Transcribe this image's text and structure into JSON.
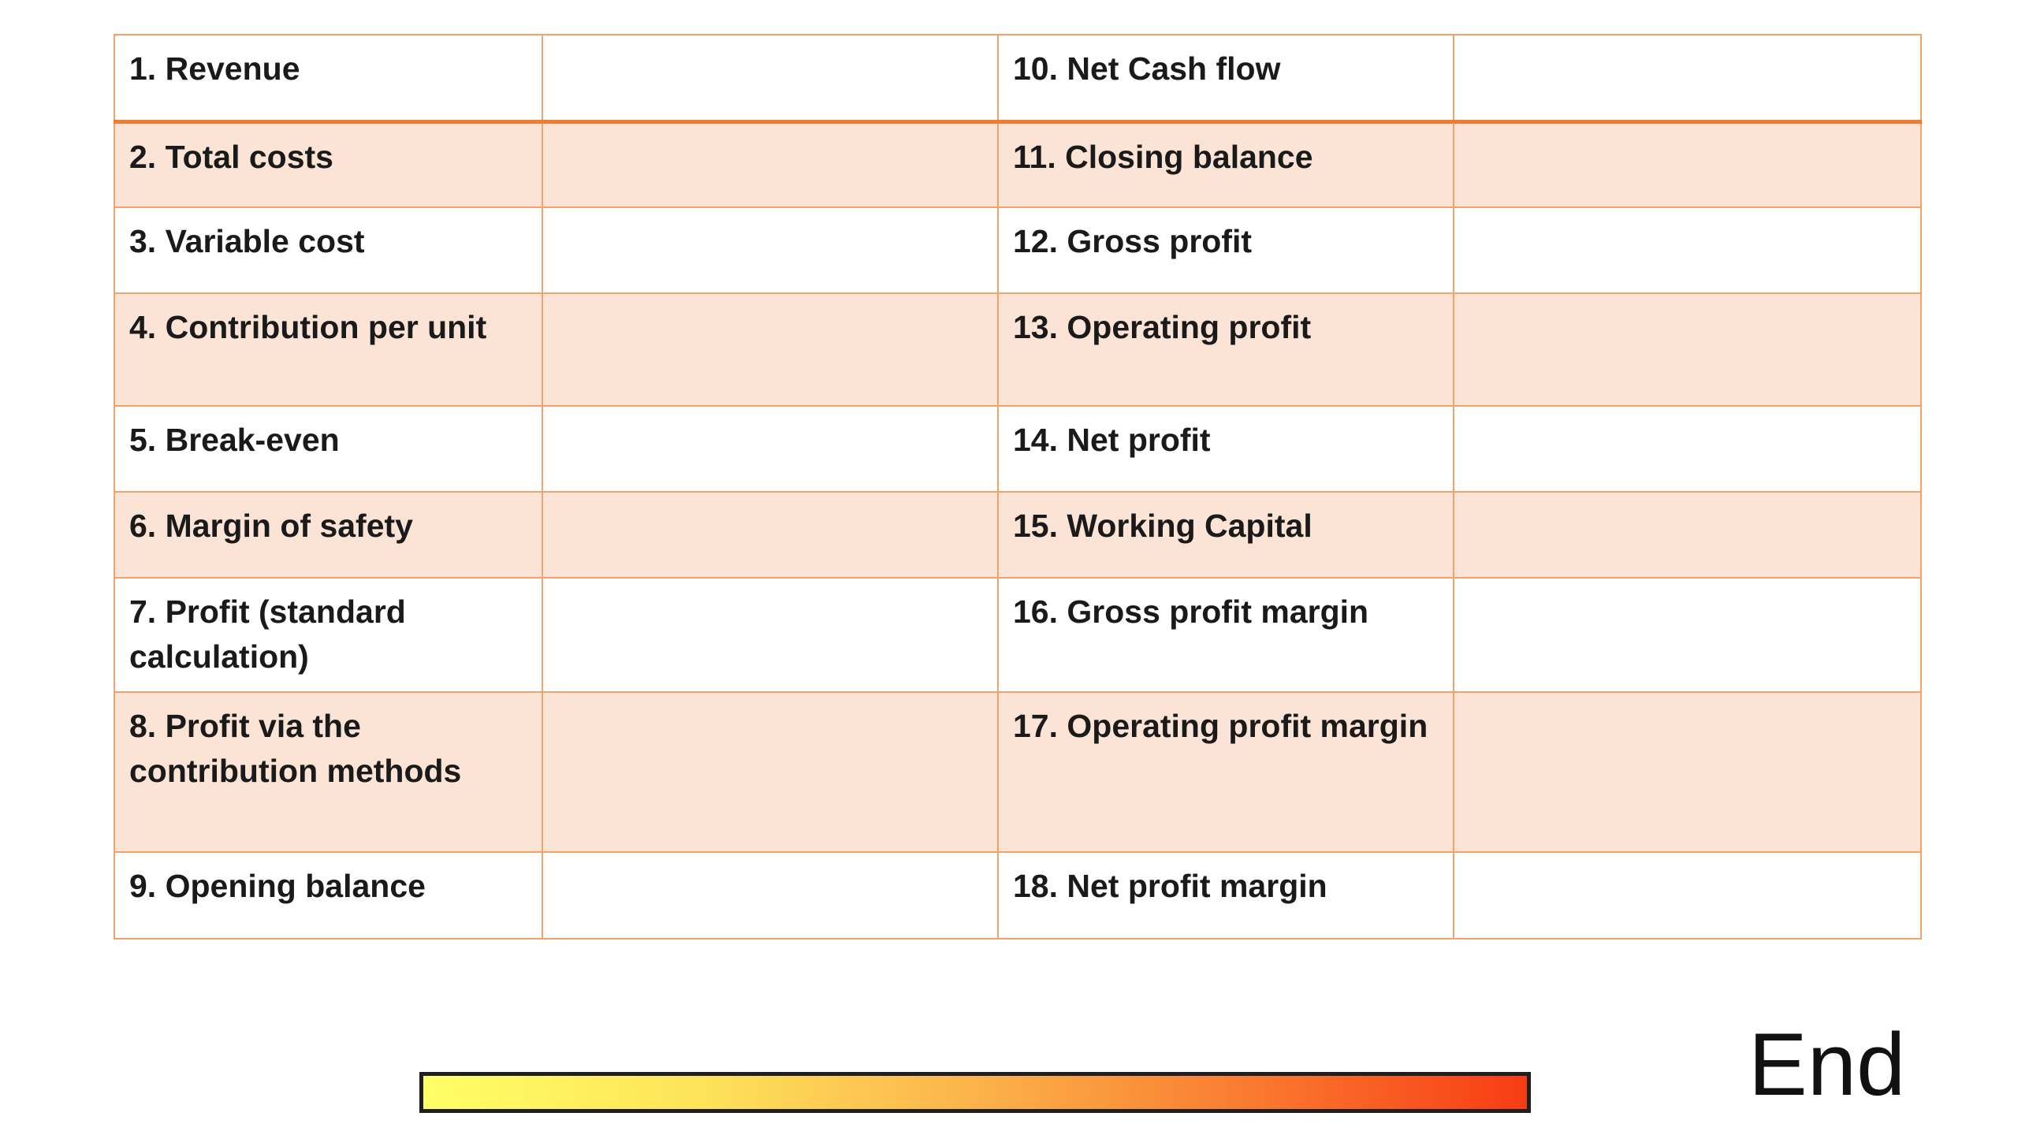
{
  "rows": [
    {
      "left": "1.   Revenue",
      "right": "10. Net Cash flow"
    },
    {
      "left": "2. Total costs",
      "right": "11. Closing balance"
    },
    {
      "left": "3. Variable cost",
      "right": "12. Gross profit"
    },
    {
      "left": "4. Contribution per unit",
      "right": "13. Operating profit"
    },
    {
      "left": "5. Break-even",
      "right": "14. Net profit"
    },
    {
      "left": "6. Margin of safety",
      "right": "15. Working Capital"
    },
    {
      "left": "7. Profit (standard calculation)",
      "right": "16. Gross profit margin"
    },
    {
      "left": "8. Profit via the contribution methods",
      "right": "17. Operating profit margin"
    },
    {
      "left": "9. Opening balance",
      "right": "18. Net profit margin"
    }
  ],
  "timer": {
    "colors": [
      "#ffff66",
      "#f73c14"
    ]
  },
  "end_label": "End",
  "colors": {
    "border": "#f0a36a",
    "band": "#fbe4d6",
    "header_rule": "#ed7d31"
  }
}
